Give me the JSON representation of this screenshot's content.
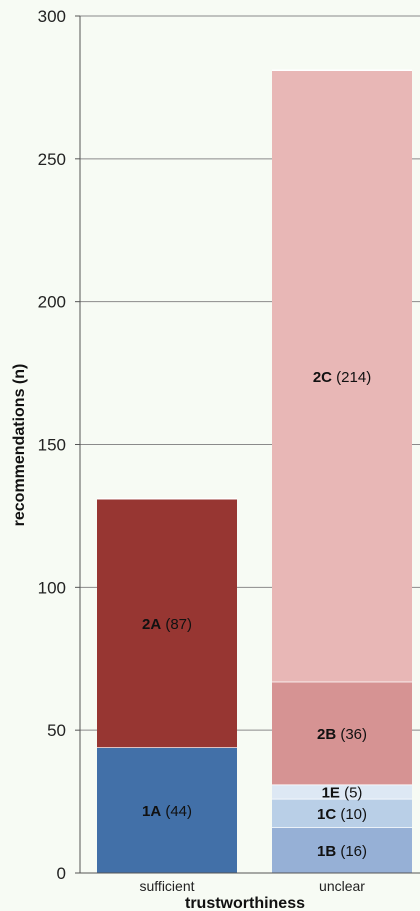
{
  "chart_data": {
    "type": "bar",
    "stacked": true,
    "xlabel": "trustworthiness",
    "ylabel": "recommendations (n)",
    "ylim": [
      0,
      300
    ],
    "yticks": [
      0,
      50,
      100,
      150,
      200,
      250,
      300
    ],
    "grid": true,
    "categories": [
      "sufficient",
      "unclear"
    ],
    "bars": [
      {
        "category": "sufficient",
        "segments": [
          {
            "code": "1A",
            "count": "(44)",
            "value": 44,
            "color": "#4270a8"
          },
          {
            "code": "2A",
            "count": "(87)",
            "value": 87,
            "color": "#973632"
          }
        ]
      },
      {
        "category": "unclear",
        "segments": [
          {
            "code": "1B",
            "count": "(16)",
            "value": 16,
            "color": "#96b0d6"
          },
          {
            "code": "1C",
            "count": "(10)",
            "value": 10,
            "color": "#b9cfe7"
          },
          {
            "code": "1E",
            "count": "(5)",
            "value": 5,
            "color": "#dde8f4"
          },
          {
            "code": "2B",
            "count": "(36)",
            "value": 36,
            "color": "#d69393"
          },
          {
            "code": "2C",
            "count": "(214)",
            "value": 214,
            "color": "#e8b7b6"
          }
        ]
      }
    ]
  }
}
